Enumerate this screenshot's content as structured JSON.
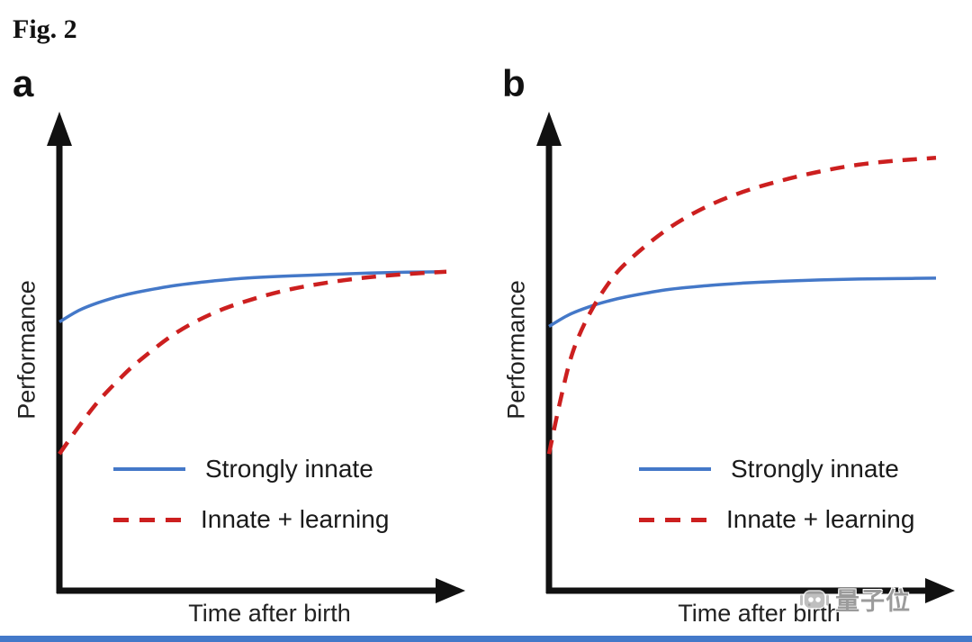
{
  "figure": {
    "label": "Fig. 2",
    "watermark_text": "量子位"
  },
  "colors": {
    "strongly_innate": "#4478c8",
    "innate_learning": "#cc1f1f",
    "axis": "#111111",
    "text": "#1a1a1a",
    "bottom_bar": "#4379c9",
    "watermark": "#9b9b9b"
  },
  "chart_data": [
    {
      "type": "line",
      "panel_label": "a",
      "title": "",
      "xlabel": "Time after birth",
      "ylabel": "Performance",
      "x_range": [
        0,
        1
      ],
      "y_range": [
        0,
        1
      ],
      "grid": false,
      "ticks": "none",
      "legend_position": "inside lower left",
      "series": [
        {
          "name": "Strongly innate",
          "style": "solid",
          "color": "#4478c8",
          "x": [
            0,
            0.05,
            0.1,
            0.15,
            0.2,
            0.3,
            0.4,
            0.5,
            0.6,
            0.7,
            0.8,
            0.9,
            1
          ],
          "y": [
            0.59,
            0.615,
            0.632,
            0.645,
            0.655,
            0.67,
            0.68,
            0.687,
            0.691,
            0.694,
            0.697,
            0.699,
            0.7
          ]
        },
        {
          "name": "Innate + learning",
          "style": "dashed",
          "color": "#cc1f1f",
          "x": [
            0,
            0.05,
            0.1,
            0.15,
            0.2,
            0.3,
            0.4,
            0.5,
            0.6,
            0.7,
            0.8,
            0.9,
            1
          ],
          "y": [
            0.3,
            0.36,
            0.415,
            0.46,
            0.5,
            0.565,
            0.61,
            0.64,
            0.662,
            0.677,
            0.688,
            0.695,
            0.7
          ]
        }
      ]
    },
    {
      "type": "line",
      "panel_label": "b",
      "title": "",
      "xlabel": "Time after birth",
      "ylabel": "Performance",
      "x_range": [
        0,
        1
      ],
      "y_range": [
        0,
        1
      ],
      "grid": false,
      "ticks": "none",
      "legend_position": "inside lower left",
      "series": [
        {
          "name": "Strongly innate",
          "style": "solid",
          "color": "#4478c8",
          "x": [
            0,
            0.05,
            0.1,
            0.15,
            0.2,
            0.3,
            0.4,
            0.5,
            0.6,
            0.7,
            0.8,
            0.9,
            1
          ],
          "y": [
            0.58,
            0.605,
            0.622,
            0.635,
            0.645,
            0.66,
            0.669,
            0.675,
            0.679,
            0.682,
            0.684,
            0.685,
            0.686
          ]
        },
        {
          "name": "Innate + learning",
          "style": "dashed",
          "color": "#cc1f1f",
          "x": [
            0,
            0.03,
            0.06,
            0.1,
            0.15,
            0.2,
            0.3,
            0.4,
            0.5,
            0.6,
            0.7,
            0.8,
            0.9,
            1
          ],
          "y": [
            0.3,
            0.42,
            0.52,
            0.6,
            0.67,
            0.72,
            0.79,
            0.84,
            0.875,
            0.9,
            0.92,
            0.935,
            0.944,
            0.95
          ]
        }
      ]
    }
  ]
}
